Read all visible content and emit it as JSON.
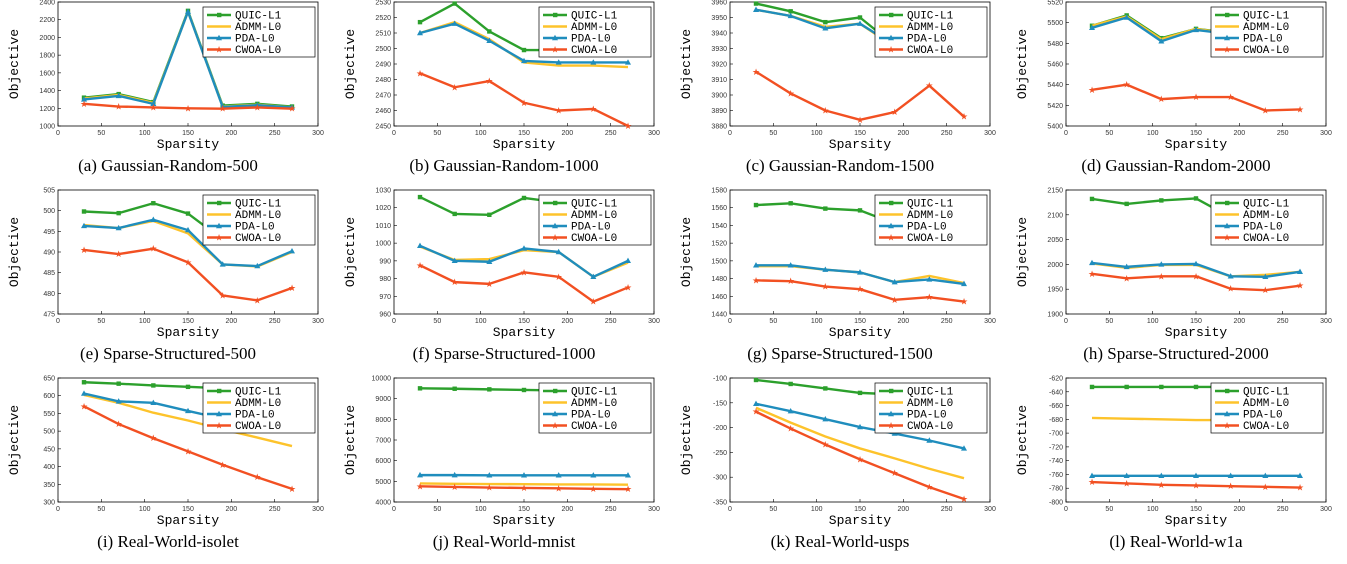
{
  "series_names": [
    "QUIC-L1",
    "ADMM-L0",
    "PDA-L0",
    "CWOA-L0"
  ],
  "colors": {
    "QUIC-L1": "#2ca02c",
    "ADMM-L0": "#fdc32b",
    "PDA-L0": "#1f8dbd",
    "CWOA-L0": "#f25022"
  },
  "xlabel": "Sparsity",
  "ylabel": "Objective",
  "legend_position": "top-right",
  "chart_data": [
    {
      "type": "line",
      "caption": "(a) Gaussian-Random-500",
      "xlim": [
        0,
        300
      ],
      "ylim": [
        1000,
        2400
      ],
      "xticks": [
        0,
        50,
        100,
        150,
        200,
        250,
        300
      ],
      "yticks": [
        1000,
        1200,
        1400,
        1600,
        1800,
        2000,
        2200,
        2400
      ],
      "x": [
        30,
        70,
        110,
        150,
        190,
        230,
        270
      ],
      "series": [
        {
          "name": "QUIC-L1",
          "values": [
            1320,
            1360,
            1270,
            2300,
            1230,
            1250,
            1220
          ]
        },
        {
          "name": "ADMM-L0",
          "values": [
            1310,
            1350,
            1260,
            2290,
            1220,
            1240,
            1210
          ]
        },
        {
          "name": "PDA-L0",
          "values": [
            1300,
            1340,
            1250,
            2290,
            1215,
            1235,
            1210
          ]
        },
        {
          "name": "CWOA-L0",
          "values": [
            1250,
            1220,
            1210,
            1200,
            1195,
            1210,
            1195
          ]
        }
      ]
    },
    {
      "type": "line",
      "caption": "(b) Gaussian-Random-1000",
      "xlim": [
        0,
        300
      ],
      "ylim": [
        2450,
        2530
      ],
      "xticks": [
        0,
        50,
        100,
        150,
        200,
        250,
        300
      ],
      "yticks": [
        2450,
        2460,
        2470,
        2480,
        2490,
        2500,
        2510,
        2520,
        2530
      ],
      "x": [
        30,
        70,
        110,
        150,
        190,
        230,
        270
      ],
      "series": [
        {
          "name": "QUIC-L1",
          "values": [
            2517,
            2529,
            2511,
            2499,
            2499,
            2499,
            2499
          ]
        },
        {
          "name": "ADMM-L0",
          "values": [
            2510,
            2517,
            2506,
            2491,
            2489,
            2489,
            2488
          ]
        },
        {
          "name": "PDA-L0",
          "values": [
            2510,
            2516,
            2505,
            2492,
            2491,
            2491,
            2491
          ]
        },
        {
          "name": "CWOA-L0",
          "values": [
            2484,
            2475,
            2479,
            2465,
            2460,
            2461,
            2450
          ]
        }
      ]
    },
    {
      "type": "line",
      "caption": "(c) Gaussian-Random-1500",
      "xlim": [
        0,
        300
      ],
      "ylim": [
        3880,
        3960
      ],
      "xticks": [
        0,
        50,
        100,
        150,
        200,
        250,
        300
      ],
      "yticks": [
        3880,
        3890,
        3900,
        3910,
        3920,
        3930,
        3940,
        3950,
        3960
      ],
      "x": [
        30,
        70,
        110,
        150,
        190,
        230,
        270
      ],
      "series": [
        {
          "name": "QUIC-L1",
          "values": [
            3959,
            3954,
            3947,
            3950,
            3932,
            3932,
            3932
          ]
        },
        {
          "name": "ADMM-L0",
          "values": [
            3955,
            3951,
            3944,
            3946,
            3931,
            3931,
            3931
          ]
        },
        {
          "name": "PDA-L0",
          "values": [
            3955,
            3951,
            3943,
            3946,
            3932,
            3932,
            3932
          ]
        },
        {
          "name": "CWOA-L0",
          "values": [
            3915,
            3901,
            3890,
            3884,
            3889,
            3906,
            3886
          ]
        }
      ]
    },
    {
      "type": "line",
      "caption": "(d) Gaussian-Random-2000",
      "xlim": [
        0,
        300
      ],
      "ylim": [
        5400,
        5520
      ],
      "xticks": [
        0,
        50,
        100,
        150,
        200,
        250,
        300
      ],
      "yticks": [
        5400,
        5420,
        5440,
        5460,
        5480,
        5500,
        5520
      ],
      "x": [
        30,
        70,
        110,
        150,
        190,
        230,
        270
      ],
      "series": [
        {
          "name": "QUIC-L1",
          "values": [
            5497,
            5507,
            5485,
            5494,
            5490,
            5490,
            5490
          ]
        },
        {
          "name": "ADMM-L0",
          "values": [
            5497,
            5506,
            5484,
            5494,
            5489,
            5489,
            5489
          ]
        },
        {
          "name": "PDA-L0",
          "values": [
            5495,
            5505,
            5482,
            5493,
            5489,
            5489,
            5489
          ]
        },
        {
          "name": "CWOA-L0",
          "values": [
            5435,
            5440,
            5426,
            5428,
            5428,
            5415,
            5416
          ]
        }
      ]
    },
    {
      "type": "line",
      "caption": "(e) Sparse-Structured-500",
      "xlim": [
        0,
        300
      ],
      "ylim": [
        475,
        505
      ],
      "xticks": [
        0,
        50,
        100,
        150,
        200,
        250,
        300
      ],
      "yticks": [
        475,
        480,
        485,
        490,
        495,
        500,
        505
      ],
      "x": [
        30,
        70,
        110,
        150,
        190,
        230,
        270
      ],
      "series": [
        {
          "name": "QUIC-L1",
          "values": [
            499.8,
            499.4,
            501.8,
            499.3,
            493,
            493,
            493
          ]
        },
        {
          "name": "ADMM-L0",
          "values": [
            496.5,
            495.8,
            497.5,
            494.5,
            487,
            486.5,
            490
          ]
        },
        {
          "name": "PDA-L0",
          "values": [
            496.3,
            495.8,
            497.8,
            495.3,
            487,
            486.6,
            490.2
          ]
        },
        {
          "name": "CWOA-L0",
          "values": [
            490.5,
            489.5,
            490.8,
            487.5,
            479.5,
            478.3,
            481.3
          ]
        }
      ]
    },
    {
      "type": "line",
      "caption": "(f) Sparse-Structured-1000",
      "xlim": [
        0,
        300
      ],
      "ylim": [
        960,
        1030
      ],
      "xticks": [
        0,
        50,
        100,
        150,
        200,
        250,
        300
      ],
      "yticks": [
        960,
        970,
        980,
        990,
        1000,
        1010,
        1020,
        1030
      ],
      "x": [
        30,
        70,
        110,
        150,
        190,
        230,
        270
      ],
      "series": [
        {
          "name": "QUIC-L1",
          "values": [
            1026,
            1016.5,
            1016,
            1025.5,
            1023,
            1023,
            1023
          ]
        },
        {
          "name": "ADMM-L0",
          "values": [
            998,
            990.5,
            991,
            996,
            995,
            981,
            989
          ]
        },
        {
          "name": "PDA-L0",
          "values": [
            998.5,
            990,
            989.5,
            997,
            995,
            981,
            990
          ]
        },
        {
          "name": "CWOA-L0",
          "values": [
            987.5,
            978,
            977,
            983.5,
            981,
            967,
            975
          ]
        }
      ]
    },
    {
      "type": "line",
      "caption": "(g) Sparse-Structured-1500",
      "xlim": [
        0,
        300
      ],
      "ylim": [
        1440,
        1580
      ],
      "xticks": [
        0,
        50,
        100,
        150,
        200,
        250,
        300
      ],
      "yticks": [
        1440,
        1460,
        1480,
        1500,
        1520,
        1540,
        1560,
        1580
      ],
      "x": [
        30,
        70,
        110,
        150,
        190,
        230,
        270
      ],
      "series": [
        {
          "name": "QUIC-L1",
          "values": [
            1563,
            1565,
            1559,
            1557,
            1542,
            1542,
            1542
          ]
        },
        {
          "name": "ADMM-L0",
          "values": [
            1494,
            1494,
            1490,
            1487,
            1476,
            1483,
            1475
          ]
        },
        {
          "name": "PDA-L0",
          "values": [
            1495,
            1495,
            1490,
            1487,
            1476,
            1479,
            1474
          ]
        },
        {
          "name": "CWOA-L0",
          "values": [
            1478,
            1477,
            1471,
            1468,
            1456,
            1459,
            1454
          ]
        }
      ]
    },
    {
      "type": "line",
      "caption": "(h) Sparse-Structured-2000",
      "xlim": [
        0,
        300
      ],
      "ylim": [
        1900,
        2150
      ],
      "xticks": [
        0,
        50,
        100,
        150,
        200,
        250,
        300
      ],
      "yticks": [
        1900,
        1950,
        2000,
        2050,
        2100,
        2150
      ],
      "x": [
        30,
        70,
        110,
        150,
        190,
        230,
        270
      ],
      "series": [
        {
          "name": "QUIC-L1",
          "values": [
            2132,
            2122,
            2129,
            2133,
            2095,
            2095,
            2095
          ]
        },
        {
          "name": "ADMM-L0",
          "values": [
            2002,
            1993,
            1999,
            1999,
            1976,
            1979,
            1985
          ]
        },
        {
          "name": "PDA-L0",
          "values": [
            2003,
            1995,
            2000,
            2001,
            1976,
            1975,
            1985
          ]
        },
        {
          "name": "CWOA-L0",
          "values": [
            1981,
            1972,
            1976,
            1976,
            1951,
            1948,
            1957
          ]
        }
      ]
    },
    {
      "type": "line",
      "caption": "(i) Real-World-isolet",
      "xlim": [
        0,
        300
      ],
      "ylim": [
        300,
        650
      ],
      "xticks": [
        0,
        50,
        100,
        150,
        200,
        250,
        300
      ],
      "yticks": [
        300,
        350,
        400,
        450,
        500,
        550,
        600,
        650
      ],
      "x": [
        30,
        70,
        110,
        150,
        190,
        230,
        270
      ],
      "series": [
        {
          "name": "QUIC-L1",
          "values": [
            638,
            634,
            629,
            625,
            621,
            619,
            617
          ]
        },
        {
          "name": "ADMM-L0",
          "values": [
            602,
            580,
            552,
            530,
            505,
            482,
            458
          ]
        },
        {
          "name": "PDA-L0",
          "values": [
            606,
            584,
            580,
            557,
            535,
            520,
            520
          ]
        },
        {
          "name": "CWOA-L0",
          "values": [
            570,
            520,
            480,
            443,
            405,
            370,
            337
          ]
        }
      ]
    },
    {
      "type": "line",
      "caption": "(j) Real-World-mnist",
      "xlim": [
        0,
        300
      ],
      "ylim": [
        4000,
        10000
      ],
      "xticks": [
        0,
        50,
        100,
        150,
        200,
        250,
        300
      ],
      "yticks": [
        4000,
        5000,
        6000,
        7000,
        8000,
        9000,
        10000
      ],
      "x": [
        30,
        70,
        110,
        150,
        190,
        230,
        270
      ],
      "series": [
        {
          "name": "QUIC-L1",
          "values": [
            9500,
            9480,
            9450,
            9420,
            9400,
            9400,
            9400
          ]
        },
        {
          "name": "ADMM-L0",
          "values": [
            4900,
            4880,
            4870,
            4860,
            4850,
            4850,
            4840
          ]
        },
        {
          "name": "PDA-L0",
          "values": [
            5300,
            5300,
            5290,
            5290,
            5290,
            5290,
            5290
          ]
        },
        {
          "name": "CWOA-L0",
          "values": [
            4760,
            4730,
            4700,
            4680,
            4660,
            4640,
            4620
          ]
        }
      ]
    },
    {
      "type": "line",
      "caption": "(k) Real-World-usps",
      "xlim": [
        0,
        300
      ],
      "ylim": [
        -350,
        -100
      ],
      "xticks": [
        0,
        50,
        100,
        150,
        200,
        250,
        300
      ],
      "yticks": [
        -350,
        -300,
        -250,
        -200,
        -150,
        -100
      ],
      "x": [
        30,
        70,
        110,
        150,
        190,
        230,
        270
      ],
      "series": [
        {
          "name": "QUIC-L1",
          "values": [
            -104,
            -112,
            -121,
            -130,
            -133,
            -135,
            -137
          ]
        },
        {
          "name": "ADMM-L0",
          "values": [
            -160,
            -190,
            -218,
            -242,
            -262,
            -283,
            -302
          ]
        },
        {
          "name": "PDA-L0",
          "values": [
            -152,
            -167,
            -183,
            -199,
            -212,
            -226,
            -242
          ]
        },
        {
          "name": "CWOA-L0",
          "values": [
            -168,
            -202,
            -234,
            -264,
            -292,
            -320,
            -344
          ]
        }
      ]
    },
    {
      "type": "line",
      "caption": "(l) Real-World-w1a",
      "xlim": [
        0,
        300
      ],
      "ylim": [
        -800,
        -620
      ],
      "xticks": [
        0,
        50,
        100,
        150,
        200,
        250,
        300
      ],
      "yticks": [
        -800,
        -780,
        -760,
        -740,
        -720,
        -700,
        -680,
        -660,
        -640,
        -620
      ],
      "x": [
        30,
        70,
        110,
        150,
        190,
        230,
        270
      ],
      "series": [
        {
          "name": "QUIC-L1",
          "values": [
            -633,
            -633,
            -633,
            -633,
            -633,
            -633,
            -633
          ]
        },
        {
          "name": "ADMM-L0",
          "values": [
            -678,
            -679,
            -680,
            -681,
            -681,
            -681,
            -681
          ]
        },
        {
          "name": "PDA-L0",
          "values": [
            -762,
            -762,
            -762,
            -762,
            -762,
            -762,
            -762
          ]
        },
        {
          "name": "CWOA-L0",
          "values": [
            -771,
            -773,
            -775,
            -776,
            -777,
            -778,
            -779
          ]
        }
      ]
    }
  ]
}
